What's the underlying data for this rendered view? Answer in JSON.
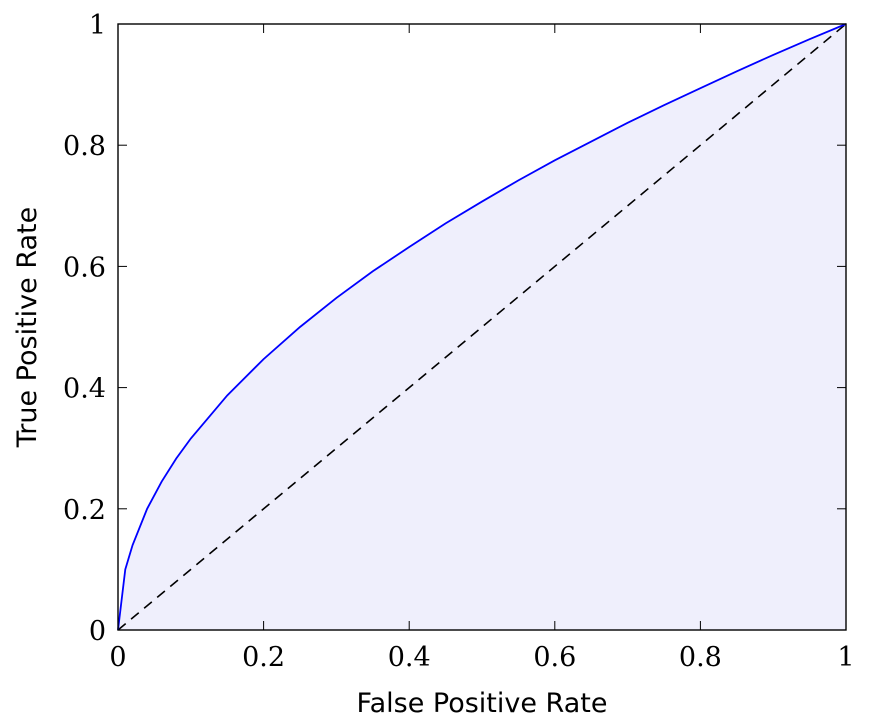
{
  "chart_data": {
    "type": "area",
    "title": "",
    "xlabel": "False Positive Rate",
    "ylabel": "True Positive Rate",
    "xlim": [
      0,
      1
    ],
    "ylim": [
      0,
      1
    ],
    "x_ticks": [
      0,
      0.2,
      0.4,
      0.6,
      0.8,
      1
    ],
    "y_ticks": [
      0,
      0.2,
      0.4,
      0.6,
      0.8,
      1
    ],
    "x_tick_labels": [
      "0",
      "0.2",
      "0.4",
      "0.6",
      "0.8",
      "1"
    ],
    "y_tick_labels": [
      "0",
      "0.2",
      "0.4",
      "0.6",
      "0.8",
      "1"
    ],
    "grid": false,
    "legend": "none",
    "series": [
      {
        "kind": "roc-curve",
        "line_color": "#0000ff",
        "fill_color": "#efeffc",
        "x": [
          0,
          0.01,
          0.02,
          0.04,
          0.06,
          0.08,
          0.1,
          0.15,
          0.2,
          0.25,
          0.3,
          0.35,
          0.4,
          0.45,
          0.5,
          0.55,
          0.6,
          0.65,
          0.7,
          0.75,
          0.8,
          0.85,
          0.9,
          0.95,
          1
        ],
        "y": [
          0,
          0.1,
          0.14,
          0.2,
          0.245,
          0.283,
          0.316,
          0.387,
          0.447,
          0.5,
          0.548,
          0.592,
          0.632,
          0.671,
          0.707,
          0.742,
          0.775,
          0.806,
          0.837,
          0.866,
          0.894,
          0.922,
          0.949,
          0.975,
          1
        ]
      },
      {
        "kind": "chance-line",
        "line_color": "#000000",
        "dashed": true,
        "x": [
          0,
          1
        ],
        "y": [
          0,
          1
        ]
      }
    ]
  }
}
